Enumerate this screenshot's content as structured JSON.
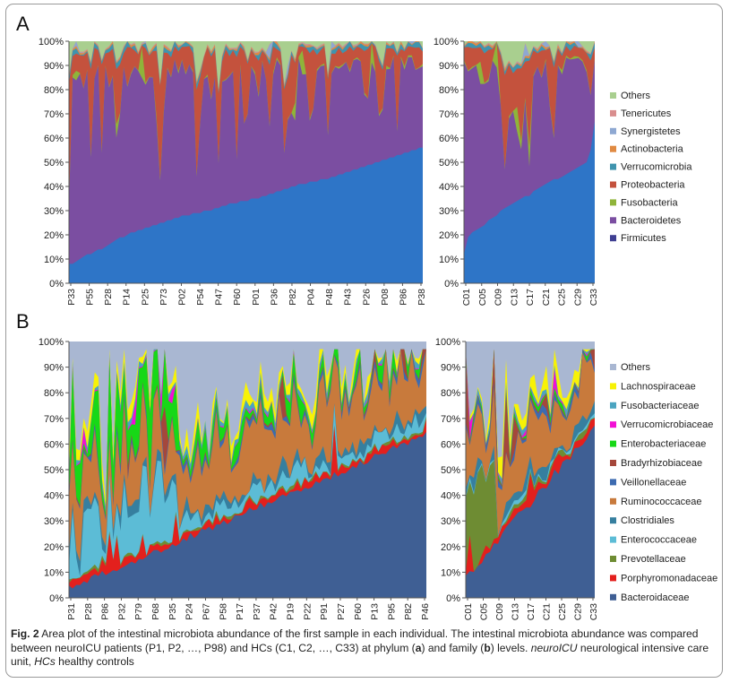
{
  "colors": {
    "phylum": {
      "Firmicutes": "#3f3f92",
      "Bacteroidetes": "#7b4ea1",
      "Fusobacteria": "#8fb43a",
      "Proteobacteria": "#c4523d",
      "Verrucomicrobia": "#3f94ae",
      "Actinobacteria": "#e08a42",
      "Synergistetes": "#8ea8d2",
      "Tenericutes": "#d98e8e",
      "Others": "#a9cf8f",
      "Base": "#2e75c7"
    },
    "family": {
      "Bacteroidaceae": "#3f5f94",
      "Porphyromonadaceae": "#e3201d",
      "Prevotellaceae": "#6e8c33",
      "Enterococcaceae": "#5cbcd6",
      "Clostridiales": "#367f9f",
      "Ruminococcaceae": "#c87a3c",
      "Veillonellaceae": "#3d6bb0",
      "Bradyrhizobiaceae": "#a5473b",
      "Enterobacteriaceae": "#17d817",
      "Verrucomicrobiaceae": "#f20fd4",
      "Fusobacteriaceae": "#4ba4c0",
      "Lachnospiraceae": "#f7f206",
      "Others": "#a9b7d2"
    }
  },
  "chart_data": [
    {
      "panel": "A",
      "group": "neuroICU",
      "type": "area",
      "stacked": true,
      "normalized": true,
      "y_ticks": [
        "0%",
        "10%",
        "20%",
        "30%",
        "40%",
        "50%",
        "60%",
        "70%",
        "80%",
        "90%",
        "100%"
      ],
      "x_ticks": [
        "P33",
        "P55",
        "P28",
        "P14",
        "P25",
        "P73",
        "P02",
        "P54",
        "P47",
        "P60",
        "P01",
        "P36",
        "P82",
        "P04",
        "P48",
        "P43",
        "P26",
        "P08",
        "P86",
        "P38"
      ],
      "n_samples": 98,
      "bottom_share": [
        8,
        8,
        9,
        10,
        11,
        12,
        12,
        13,
        14,
        14,
        15,
        16,
        17,
        18,
        19,
        19,
        20,
        21,
        21,
        22,
        22,
        23,
        23,
        24,
        24,
        25,
        25,
        26,
        26,
        27,
        27,
        28,
        28,
        28,
        29,
        29,
        29,
        30,
        30,
        30,
        31,
        31,
        32,
        32,
        33,
        33,
        33,
        34,
        34,
        34,
        35,
        35,
        35,
        36,
        36,
        37,
        37,
        38,
        38,
        39,
        39,
        40,
        40,
        41,
        41,
        41,
        42,
        42,
        42,
        43,
        43,
        43,
        44,
        44,
        45,
        45,
        46,
        46,
        47,
        47,
        48,
        48,
        49,
        49,
        50,
        50,
        51,
        51,
        52,
        52,
        53,
        53,
        54,
        54,
        55,
        55,
        56,
        56
      ]
    },
    {
      "panel": "A",
      "group": "HCs",
      "type": "area",
      "stacked": true,
      "normalized": true,
      "y_ticks": [
        "0%",
        "10%",
        "20%",
        "30%",
        "40%",
        "50%",
        "60%",
        "70%",
        "80%",
        "90%",
        "100%"
      ],
      "x_ticks": [
        "C01",
        "C05",
        "C09",
        "C13",
        "C17",
        "C21",
        "C25",
        "C29",
        "C33"
      ],
      "n_samples": 33,
      "bottom_share": [
        12,
        19,
        21,
        22,
        23,
        24,
        26,
        27,
        28,
        30,
        31,
        32,
        33,
        34,
        35,
        36,
        36,
        38,
        39,
        40,
        41,
        42,
        43,
        43,
        44,
        45,
        46,
        47,
        48,
        49,
        50,
        55,
        67
      ]
    },
    {
      "panel": "A",
      "type": "legend",
      "series": [
        "Others",
        "Tenericutes",
        "Synergistetes",
        "Actinobacteria",
        "Verrucomicrobia",
        "Proteobacteria",
        "Fusobacteria",
        "Bacteroidetes",
        "Firmicutes"
      ]
    },
    {
      "panel": "B",
      "group": "neuroICU",
      "type": "area",
      "stacked": true,
      "normalized": true,
      "y_ticks": [
        "0%",
        "10%",
        "20%",
        "30%",
        "40%",
        "50%",
        "60%",
        "70%",
        "80%",
        "90%",
        "100%"
      ],
      "x_ticks": [
        "P31",
        "P28",
        "P86",
        "P32",
        "P79",
        "P68",
        "P35",
        "P24",
        "P67",
        "P58",
        "P17",
        "P37",
        "P42",
        "P19",
        "P22",
        "P91",
        "P27",
        "P60",
        "P13",
        "P95",
        "P82",
        "P46"
      ],
      "n_samples": 98
    },
    {
      "panel": "B",
      "group": "HCs",
      "type": "area",
      "stacked": true,
      "normalized": true,
      "y_ticks": [
        "0%",
        "10%",
        "20%",
        "30%",
        "40%",
        "50%",
        "60%",
        "70%",
        "80%",
        "90%",
        "100%"
      ],
      "x_ticks": [
        "C01",
        "C05",
        "C09",
        "C13",
        "C17",
        "C21",
        "C25",
        "C29",
        "C33"
      ],
      "n_samples": 33
    },
    {
      "panel": "B",
      "type": "legend",
      "series": [
        "Others",
        "Lachnospiraceae",
        "Fusobacteriaceae",
        "Verrucomicrobiaceae",
        "Enterobacteriaceae",
        "Bradyrhizobiaceae",
        "Veillonellaceae",
        "Ruminococcaceae",
        "Clostridiales",
        "Enterococcaceae",
        "Prevotellaceae",
        "Porphyromonadaceae",
        "Bacteroidaceae"
      ]
    }
  ],
  "panel_labels": {
    "a": "A",
    "b": "B"
  },
  "caption": {
    "fig": "Fig. 2",
    "text_1": " Area plot of the intestinal microbiota abundance of the first sample in each individual. The intestinal microbiota abundance was compared between neuroICU patients (P1, P2, …, P98) and HCs (C1, C2, …, C33) at phylum (",
    "a": "a",
    "text_2": ") and family (",
    "b": "b",
    "text_3": ") levels. ",
    "abbr_1": "neuroICU",
    "text_4": " neurological intensive care unit, ",
    "abbr_2": "HCs",
    "text_5": " healthy controls"
  }
}
